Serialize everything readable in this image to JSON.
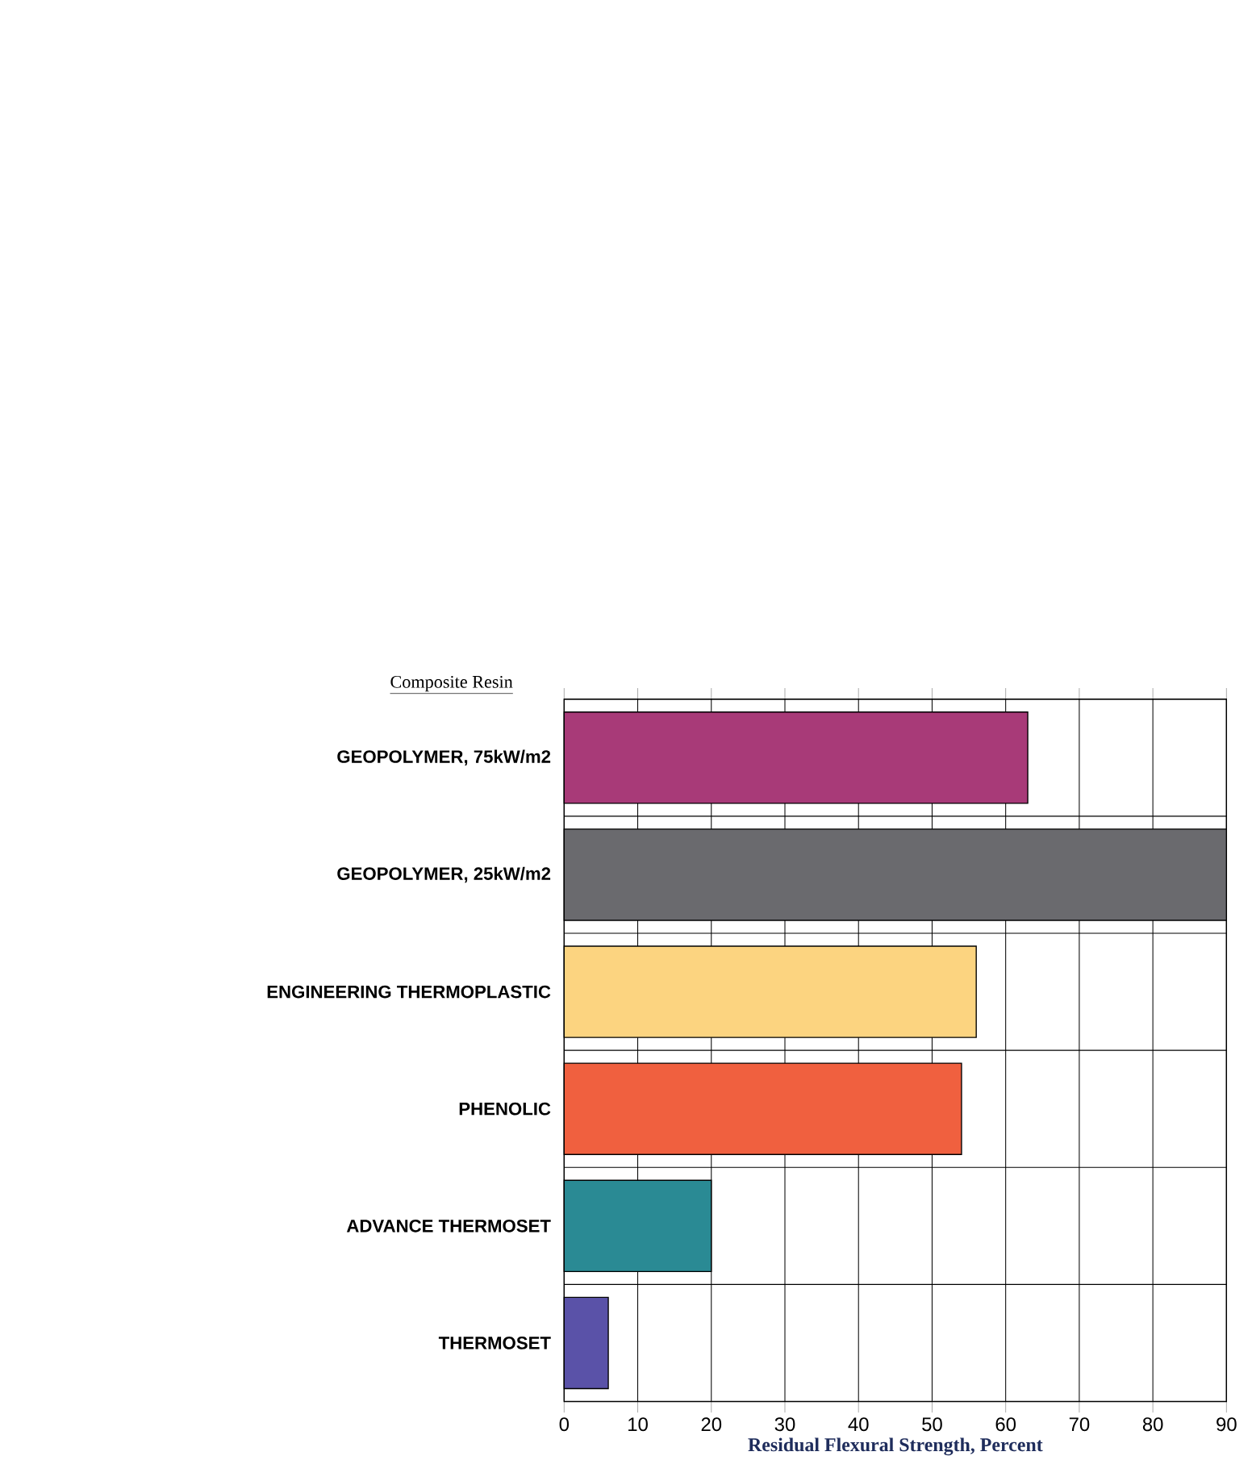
{
  "chart_data": {
    "type": "bar",
    "orientation": "horizontal",
    "categories": [
      "GEOPOLYMER, 75kW/m2",
      "GEOPOLYMER, 25kW/m2",
      "ENGINEERING THERMOPLASTIC",
      "PHENOLIC",
      "ADVANCE THERMOSET",
      "THERMOSET"
    ],
    "values": [
      63,
      90,
      56,
      54,
      20,
      6
    ],
    "colors": [
      "#a83a78",
      "#6a6a6e",
      "#fcd480",
      "#f0603f",
      "#2a8a94",
      "#5a52a8"
    ],
    "xlim": [
      0,
      90
    ],
    "xticks": [
      0,
      10,
      20,
      30,
      40,
      50,
      60,
      70,
      80,
      90
    ],
    "xlabel": "Residual Flexural Strength, Percent",
    "ylabel": "Composite Resin",
    "grid": true
  }
}
